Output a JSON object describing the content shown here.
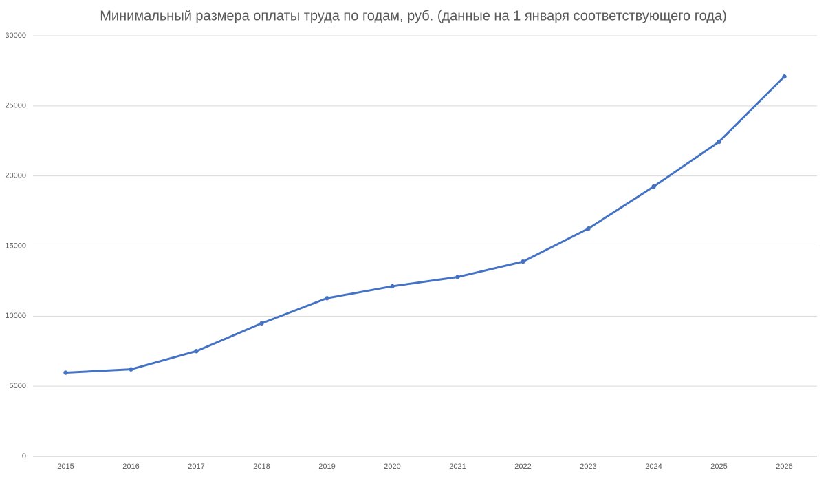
{
  "chart_data": {
    "type": "line",
    "title": "Минимальный размера оплаты труда по годам, руб. (данные на 1 января соответствующего года)",
    "categories": [
      "2015",
      "2016",
      "2017",
      "2018",
      "2019",
      "2020",
      "2021",
      "2022",
      "2023",
      "2024",
      "2025",
      "2026"
    ],
    "values": [
      5965,
      6204,
      7500,
      9489,
      11280,
      12130,
      12792,
      13890,
      16242,
      19242,
      22440,
      27093
    ],
    "color": "#4472c4",
    "ylim": [
      0,
      30000
    ],
    "yticks": [
      0,
      5000,
      10000,
      15000,
      20000,
      25000,
      30000
    ],
    "grid": true
  }
}
